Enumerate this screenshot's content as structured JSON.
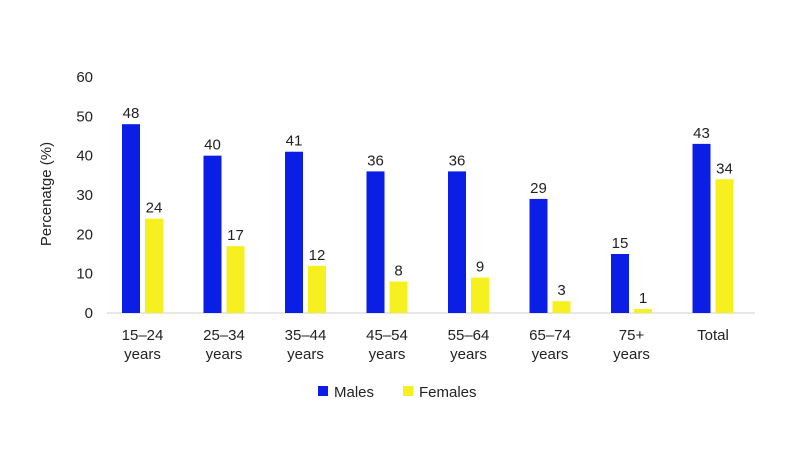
{
  "chart_data": {
    "type": "bar",
    "categories": [
      [
        "15–24",
        "years"
      ],
      [
        "25–34",
        "years"
      ],
      [
        "35–44",
        "years"
      ],
      [
        "45–54",
        "years"
      ],
      [
        "55–64",
        "years"
      ],
      [
        "65–74",
        "years"
      ],
      [
        "75+",
        "years"
      ],
      [
        "Total"
      ]
    ],
    "series": [
      {
        "name": "Males",
        "color": "#0a1ee6",
        "values": [
          48,
          40,
          41,
          36,
          36,
          29,
          15,
          43
        ]
      },
      {
        "name": "Females",
        "color": "#f5f01e",
        "values": [
          24,
          17,
          12,
          8,
          9,
          3,
          1,
          34
        ]
      }
    ],
    "ylabel": "Percenatge (%)",
    "yticks": [
      0,
      10,
      20,
      30,
      40,
      50,
      60
    ],
    "ylim": [
      0,
      60
    ],
    "grid": false,
    "legend_position": "bottom-center"
  }
}
